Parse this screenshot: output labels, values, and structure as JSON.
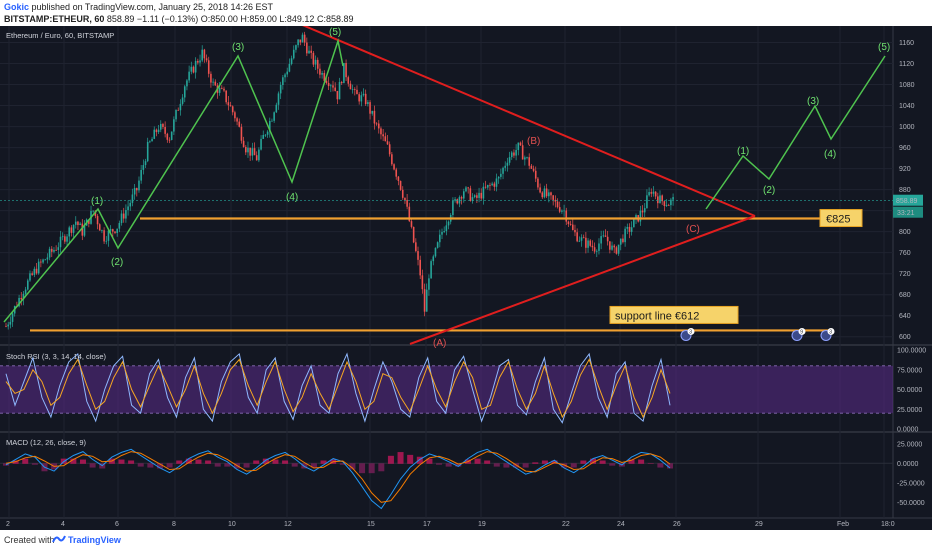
{
  "header": {
    "publisher": "Gokic",
    "published_text": "published on TradingView.com, January 25, 2018 14:26 EST",
    "symbol": "BITSTAMP:ETHEUR, 60",
    "last": "858.89",
    "change": "−1.11 (−0.13%)",
    "open": "O:850.00",
    "high": "H:859.00",
    "low": "L:849.12",
    "close": "C:858.89"
  },
  "footer": {
    "created_text": "Created with",
    "brand": "TradingView"
  },
  "colors": {
    "background": "#131722",
    "candle_up": "#26a69a",
    "candle_down": "#ef5350",
    "wave": "#4fc34f",
    "triangle": "#e01e1e",
    "support": "#f0a030",
    "stoch_k": "#8fb8ff",
    "stoch_d": "#f5a623",
    "stoch_band": "#5b2c8a"
  },
  "chart_data": [
    {
      "type": "candlestick",
      "title": "Ethereum / Euro, 60, BITSTAMP",
      "x_ticks": [
        "2",
        "4",
        "6",
        "8",
        "10",
        "12",
        "15",
        "17",
        "19",
        "22",
        "24",
        "26",
        "29",
        "Feb",
        "18:0"
      ],
      "y_ticks": [
        600,
        640,
        680,
        720,
        760,
        800,
        840,
        880,
        920,
        960,
        1000,
        1040,
        1080,
        1120,
        1160
      ],
      "ylim": [
        590,
        1180
      ],
      "last_price_label": "858.89",
      "countdown_label": "33:21",
      "price_anchors": [
        [
          0,
          620
        ],
        [
          8,
          690
        ],
        [
          14,
          730
        ],
        [
          25,
          780
        ],
        [
          32,
          820
        ],
        [
          35,
          800
        ],
        [
          40,
          840
        ],
        [
          45,
          790
        ],
        [
          51,
          810
        ],
        [
          60,
          880
        ],
        [
          65,
          960
        ],
        [
          70,
          1000
        ],
        [
          75,
          980
        ],
        [
          82,
          1080
        ],
        [
          87,
          1120
        ],
        [
          90,
          1140
        ],
        [
          95,
          1080
        ],
        [
          100,
          1060
        ],
        [
          105,
          1020
        ],
        [
          110,
          960
        ],
        [
          115,
          940
        ],
        [
          118,
          980
        ],
        [
          122,
          1020
        ],
        [
          126,
          1080
        ],
        [
          130,
          1120
        ],
        [
          134,
          1160
        ],
        [
          136,
          1170
        ],
        [
          140,
          1130
        ],
        [
          145,
          1100
        ],
        [
          150,
          1080
        ],
        [
          152,
          1060
        ],
        [
          155,
          1110
        ],
        [
          160,
          1060
        ],
        [
          165,
          1050
        ],
        [
          170,
          1000
        ],
        [
          175,
          960
        ],
        [
          180,
          900
        ],
        [
          183,
          860
        ],
        [
          188,
          760
        ],
        [
          190,
          720
        ],
        [
          192,
          650
        ],
        [
          194,
          720
        ],
        [
          197,
          760
        ],
        [
          200,
          800
        ],
        [
          205,
          850
        ],
        [
          210,
          880
        ],
        [
          215,
          860
        ],
        [
          220,
          880
        ],
        [
          226,
          900
        ],
        [
          230,
          940
        ],
        [
          235,
          960
        ],
        [
          240,
          930
        ],
        [
          245,
          880
        ],
        [
          250,
          860
        ],
        [
          256,
          840
        ],
        [
          260,
          800
        ],
        [
          265,
          780
        ],
        [
          270,
          770
        ],
        [
          275,
          790
        ],
        [
          279,
          760
        ],
        [
          283,
          790
        ],
        [
          287,
          810
        ],
        [
          292,
          840
        ],
        [
          296,
          880
        ],
        [
          300,
          860
        ],
        [
          304,
          855
        ],
        [
          306,
          859
        ]
      ],
      "wave_labels": [
        "(1)",
        "(2)",
        "(3)",
        "(4)",
        "(5)",
        "(1)",
        "(2)",
        "(3)",
        "(4)",
        "(5)"
      ],
      "abc_labels": [
        "(A)",
        "(B)",
        "(C)"
      ],
      "levels": [
        {
          "label": "€825",
          "price": 825
        },
        {
          "label": "support line €612",
          "price": 612
        }
      ],
      "event_marks": [
        "3",
        "9",
        "3"
      ]
    },
    {
      "type": "line",
      "title": "Stoch RSI (3, 3, 14, 14, close)",
      "y_ticks": [
        "100.0000",
        "75.0000",
        "50.0000",
        "25.0000",
        "0.0000"
      ],
      "ylim": [
        0,
        100
      ],
      "bands": [
        20,
        80
      ],
      "series": [
        {
          "values": [
            70,
            30,
            60,
            90,
            40,
            15,
            55,
            85,
            95,
            35,
            10,
            50,
            80,
            92,
            30,
            20,
            70,
            88,
            40,
            15,
            65,
            90,
            25,
            10,
            60,
            85,
            95,
            40,
            20,
            75,
            90,
            35,
            12,
            55,
            80,
            30,
            20,
            70,
            95,
            45,
            10,
            50,
            85,
            60,
            25,
            15,
            65,
            90,
            35,
            20,
            75,
            92,
            50,
            10,
            40,
            80,
            88,
            30,
            18,
            60,
            90,
            25,
            8,
            45,
            80,
            95,
            40,
            15,
            70,
            85,
            20,
            10,
            55,
            88,
            30
          ]
        },
        {
          "values": [
            60,
            45,
            50,
            75,
            60,
            30,
            40,
            70,
            88,
            55,
            25,
            35,
            65,
            85,
            50,
            28,
            55,
            80,
            55,
            28,
            50,
            80,
            45,
            20,
            45,
            75,
            88,
            55,
            30,
            60,
            85,
            50,
            22,
            40,
            70,
            45,
            25,
            55,
            85,
            60,
            25,
            35,
            70,
            65,
            40,
            22,
            50,
            80,
            50,
            28,
            60,
            85,
            65,
            25,
            30,
            65,
            85,
            50,
            25,
            45,
            80,
            45,
            15,
            35,
            68,
            88,
            55,
            25,
            55,
            80,
            40,
            15,
            40,
            75,
            45
          ]
        }
      ]
    },
    {
      "type": "line",
      "title": "MACD (12, 26, close, 9)",
      "y_ticks": [
        "25.0000",
        "0.0000",
        "-25.0000",
        "-50.0000"
      ],
      "ylim": [
        -65,
        35
      ],
      "series": [
        {
          "values": [
            -2,
            5,
            12,
            8,
            -5,
            -10,
            2,
            10,
            15,
            5,
            -3,
            8,
            14,
            18,
            10,
            2,
            -6,
            -12,
            -4,
            6,
            12,
            16,
            8,
            2,
            -8,
            -14,
            -6,
            4,
            10,
            14,
            6,
            -4,
            -10,
            -2,
            6,
            2,
            -12,
            -30,
            -48,
            -58,
            -40,
            -20,
            -5,
            5,
            12,
            8,
            2,
            -4,
            6,
            14,
            18,
            10,
            2,
            -6,
            -14,
            -10,
            -2,
            4,
            -6,
            -12,
            -4,
            6,
            10,
            4,
            -2,
            8,
            14,
            12,
            4,
            -6
          ]
        },
        {
          "values": [
            0,
            2,
            7,
            9,
            3,
            -4,
            -3,
            5,
            11,
            9,
            2,
            3,
            10,
            15,
            13,
            6,
            -1,
            -8,
            -7,
            1,
            8,
            13,
            11,
            5,
            -3,
            -10,
            -9,
            -1,
            6,
            11,
            9,
            1,
            -6,
            -5,
            2,
            3,
            -6,
            -20,
            -38,
            -50,
            -48,
            -32,
            -14,
            -2,
            7,
            9,
            5,
            -1,
            2,
            9,
            15,
            13,
            6,
            -2,
            -10,
            -11,
            -5,
            1,
            -2,
            -8,
            -7,
            1,
            7,
            6,
            1,
            4,
            10,
            12,
            8,
            -1
          ]
        }
      ]
    }
  ]
}
